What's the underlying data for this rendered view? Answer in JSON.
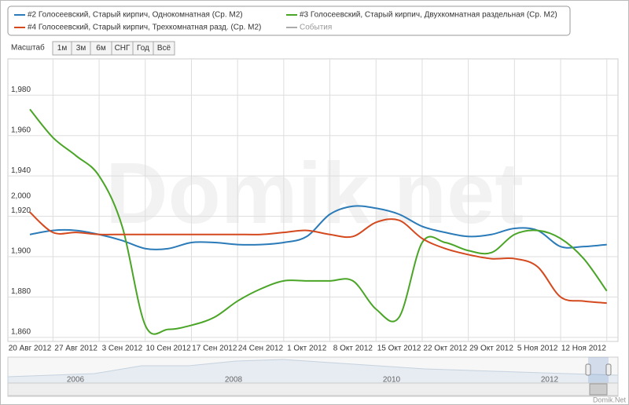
{
  "chart_data": {
    "type": "line",
    "legend": [
      "#2 Голосеевский, Старый кирпич, Однокомнатная (Ср. М2)",
      "#3 Голосеевский, Старый кирпич, Двухкомнатная раздельная (Ср. М2)",
      "#4 Голосеевский, Старый кирпич, Трехкомнатная разд. (Ср. М2)",
      "События"
    ],
    "events_color": "#aaaaaa",
    "range_selector": {
      "label": "Масштаб",
      "buttons": [
        "1м",
        "3м",
        "6м",
        "СНГ",
        "Год",
        "Всё"
      ]
    },
    "categories": [
      "20 Авг 2012",
      null,
      "27 Авг 2012",
      null,
      "3 Сен 2012",
      null,
      "10 Сен 2012",
      null,
      "17 Сен 2012",
      null,
      "24 Сен 2012",
      null,
      "1 Окт 2012",
      null,
      "8 Окт 2012",
      null,
      "15 Окт 2012",
      null,
      "22 Окт 2012",
      null,
      "29 Окт 2012",
      null,
      "5 Ноя 2012",
      null,
      "12 Ноя 2012",
      null
    ],
    "series": [
      {
        "name": "#2 Голосеевский, Старый кирпич, Однокомнатная (Ср. М2)",
        "color": "#2b7bb9",
        "values": [
          1911,
          1913,
          1913,
          1911,
          1908,
          1904,
          1904,
          1907,
          1907,
          1906,
          1906,
          1907,
          1910,
          1921,
          1925,
          1924,
          1921,
          1915,
          1912,
          1910,
          1911,
          1914,
          1913,
          1905,
          1905,
          1906
        ]
      },
      {
        "name": "#3 Голосеевский, Старый кирпич, Двухкомнатная раздельная (Ср. М2)",
        "color": "#4aa526",
        "values": [
          1973,
          1959,
          1950,
          1940,
          1915,
          1866,
          1864,
          1866,
          1870,
          1878,
          1884,
          1888,
          1888,
          1888,
          1888,
          1874,
          1870,
          1907,
          1907,
          1903,
          1902,
          1911,
          1913,
          1909,
          1899,
          1883
        ]
      },
      {
        "name": "#4 Голосеевский, Старый кирпич, Трехкомнатная разд. (Ср. М2)",
        "color": "#d4491d",
        "values": [
          1922,
          1912,
          1912,
          1911,
          1911,
          1911,
          1911,
          1911,
          1911,
          1911,
          1911,
          1912,
          1913,
          1911,
          1910,
          1917,
          1918,
          1909,
          1904,
          1901,
          1899,
          1899,
          1895,
          1880,
          1878,
          1877
        ]
      }
    ],
    "ylim": [
      1858,
      1998
    ],
    "yticks": [
      {
        "value": 1860,
        "label": "1,860"
      },
      {
        "value": 1880,
        "label": "1,880"
      },
      {
        "value": 1900,
        "label": "1,900"
      },
      {
        "value": 1920,
        "label": "1,920"
      },
      {
        "value": 1940,
        "label": "1,940"
      },
      {
        "value": 1960,
        "label": "1,960"
      },
      {
        "value": 1980,
        "label": "1,980"
      }
    ],
    "annotations": [
      "2,000"
    ],
    "grid": true,
    "navigator_years": [
      "2006",
      "2008",
      "2010",
      "2012"
    ],
    "watermark": "Domik.net",
    "credit": "Domik.Net"
  }
}
